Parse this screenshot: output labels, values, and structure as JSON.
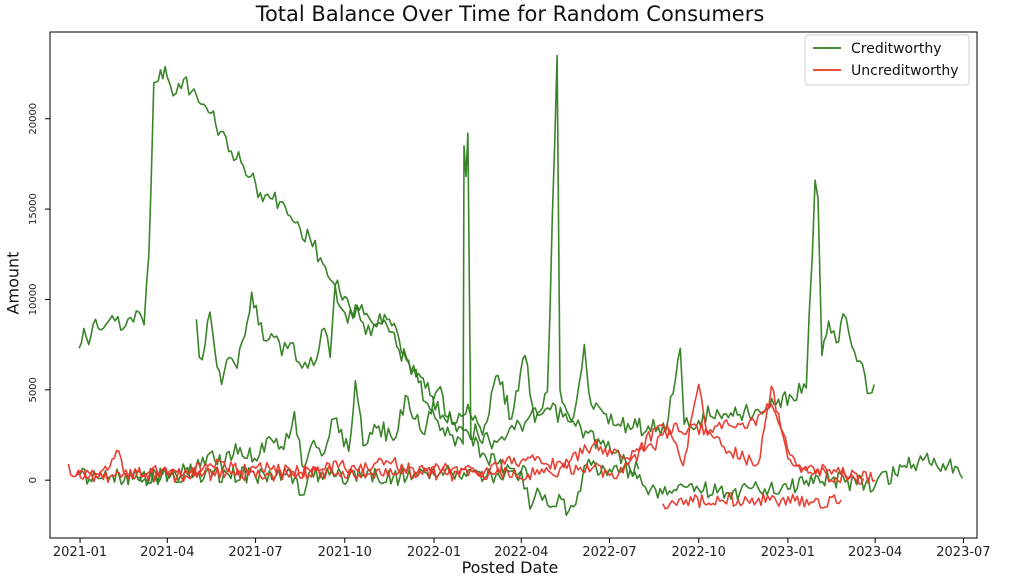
{
  "chart_data": {
    "type": "line",
    "title": "Total Balance Over Time for Random Consumers",
    "xlabel": "Posted Date",
    "ylabel": "Amount",
    "xlim": [
      "2020-12-01",
      "2023-07-15"
    ],
    "ylim": [
      -3200,
      24800
    ],
    "x_ticks": [
      "2021-01",
      "2021-04",
      "2021-07",
      "2021-10",
      "2022-01",
      "2022-04",
      "2022-07",
      "2022-10",
      "2023-01",
      "2023-04",
      "2023-07"
    ],
    "y_ticks": [
      0,
      5000,
      10000,
      15000,
      20000
    ],
    "grid": false,
    "legend": {
      "placement": "top-right",
      "entries": [
        {
          "label": "Creditworthy",
          "color": "#2f7d1f"
        },
        {
          "label": "Uncreditworthy",
          "color": "#e8362a"
        }
      ]
    },
    "series": [
      {
        "class": "Creditworthy",
        "color": "#2f7d1f",
        "points": [
          [
            "2020-12-31",
            7300
          ],
          [
            "2021-01-05",
            8400
          ],
          [
            "2021-01-10",
            7500
          ],
          [
            "2021-01-17",
            8900
          ],
          [
            "2021-01-25",
            8400
          ],
          [
            "2021-02-03",
            9100
          ],
          [
            "2021-02-12",
            8300
          ],
          [
            "2021-02-22",
            9000
          ],
          [
            "2021-03-03",
            9300
          ],
          [
            "2021-03-08",
            8600
          ],
          [
            "2021-03-13",
            12500
          ],
          [
            "2021-03-18",
            22000
          ],
          [
            "2021-03-25",
            22700
          ],
          [
            "2021-04-01",
            22300
          ],
          [
            "2021-04-10",
            21400
          ],
          [
            "2021-04-18",
            22200
          ],
          [
            "2021-04-26",
            21500
          ],
          [
            "2021-05-06",
            20800
          ],
          [
            "2021-05-16",
            20300
          ],
          [
            "2021-05-26",
            19300
          ],
          [
            "2021-06-06",
            18200
          ],
          [
            "2021-06-16",
            17600
          ],
          [
            "2021-06-26",
            16800
          ],
          [
            "2021-07-06",
            15900
          ],
          [
            "2021-07-16",
            15600
          ],
          [
            "2021-07-26",
            15400
          ],
          [
            "2021-08-06",
            14600
          ],
          [
            "2021-08-16",
            13900
          ],
          [
            "2021-08-26",
            13400
          ],
          [
            "2021-09-06",
            12300
          ],
          [
            "2021-09-16",
            11100
          ],
          [
            "2021-09-26",
            10400
          ],
          [
            "2021-10-06",
            9600
          ],
          [
            "2021-10-16",
            9400
          ],
          [
            "2021-10-26",
            9000
          ],
          [
            "2021-11-06",
            8700
          ],
          [
            "2021-11-16",
            8900
          ],
          [
            "2021-11-26",
            7800
          ],
          [
            "2021-12-06",
            6500
          ],
          [
            "2021-12-16",
            5900
          ],
          [
            "2021-12-28",
            4700
          ],
          [
            "2022-01-10",
            3600
          ],
          [
            "2022-01-22",
            3200
          ],
          [
            "2022-02-03",
            2800
          ],
          [
            "2022-02-15",
            2600
          ],
          [
            "2022-02-27",
            2200
          ],
          [
            "2022-03-12",
            2400
          ],
          [
            "2022-03-25",
            2800
          ],
          [
            "2022-04-05",
            3200
          ],
          [
            "2022-04-18",
            3600
          ],
          [
            "2022-05-01",
            3900
          ],
          [
            "2022-05-14",
            3500
          ],
          [
            "2022-05-27",
            3000
          ],
          [
            "2022-06-09",
            2600
          ],
          [
            "2022-06-22",
            2000
          ],
          [
            "2022-07-05",
            1500
          ],
          [
            "2022-07-18",
            1000
          ],
          [
            "2022-07-31",
            600
          ]
        ]
      },
      {
        "class": "Creditworthy",
        "color": "#2f7d1f",
        "points": [
          [
            "2021-05-01",
            8900
          ],
          [
            "2021-05-04",
            6800
          ],
          [
            "2021-05-10",
            7500
          ],
          [
            "2021-05-15",
            9300
          ],
          [
            "2021-05-20",
            7200
          ],
          [
            "2021-05-27",
            5300
          ],
          [
            "2021-06-04",
            6800
          ],
          [
            "2021-06-12",
            6200
          ],
          [
            "2021-06-20",
            8000
          ],
          [
            "2021-06-27",
            10400
          ],
          [
            "2021-07-04",
            8600
          ],
          [
            "2021-07-12",
            7700
          ],
          [
            "2021-07-20",
            7900
          ],
          [
            "2021-07-28",
            6900
          ],
          [
            "2021-08-06",
            7600
          ],
          [
            "2021-08-15",
            6500
          ],
          [
            "2021-08-24",
            6200
          ],
          [
            "2021-09-02",
            6700
          ],
          [
            "2021-09-10",
            8400
          ],
          [
            "2021-09-16",
            6800
          ],
          [
            "2021-09-21",
            10800
          ],
          [
            "2021-09-26",
            9600
          ],
          [
            "2021-10-04",
            8700
          ],
          [
            "2021-10-12",
            9700
          ],
          [
            "2021-10-20",
            8700
          ],
          [
            "2021-10-28",
            8000
          ],
          [
            "2021-11-06",
            9200
          ],
          [
            "2021-11-16",
            8200
          ],
          [
            "2021-11-26",
            7200
          ],
          [
            "2021-12-06",
            6600
          ],
          [
            "2021-12-16",
            5400
          ],
          [
            "2021-12-28",
            3900
          ],
          [
            "2022-01-10",
            2900
          ],
          [
            "2022-01-20",
            2500
          ],
          [
            "2022-01-31",
            2000
          ],
          [
            "2022-02-01",
            18500
          ],
          [
            "2022-02-03",
            16800
          ],
          [
            "2022-02-05",
            19200
          ],
          [
            "2022-02-08",
            2500
          ],
          [
            "2022-02-20",
            1500
          ],
          [
            "2022-03-06",
            900
          ],
          [
            "2022-03-22",
            500
          ],
          [
            "2022-04-10",
            200
          ]
        ]
      },
      {
        "class": "Creditworthy",
        "color": "#2f7d1f",
        "points": [
          [
            "2021-03-01",
            100
          ],
          [
            "2021-03-20",
            200
          ],
          [
            "2021-04-10",
            300
          ],
          [
            "2021-04-30",
            600
          ],
          [
            "2021-05-15",
            1500
          ],
          [
            "2021-05-30",
            900
          ],
          [
            "2021-06-15",
            1800
          ],
          [
            "2021-06-30",
            1200
          ],
          [
            "2021-07-15",
            2400
          ],
          [
            "2021-07-30",
            1700
          ],
          [
            "2021-08-10",
            3800
          ],
          [
            "2021-08-18",
            800
          ],
          [
            "2021-08-30",
            2200
          ],
          [
            "2021-09-10",
            1500
          ],
          [
            "2021-09-20",
            3400
          ],
          [
            "2021-10-05",
            1600
          ],
          [
            "2021-10-12",
            5500
          ],
          [
            "2021-10-20",
            1900
          ],
          [
            "2021-11-05",
            3000
          ],
          [
            "2021-11-20",
            2200
          ],
          [
            "2021-12-05",
            4600
          ],
          [
            "2021-12-20",
            2600
          ],
          [
            "2022-01-05",
            5000
          ],
          [
            "2022-01-20",
            3100
          ],
          [
            "2022-02-05",
            4200
          ],
          [
            "2022-02-20",
            2500
          ],
          [
            "2022-03-08",
            5800
          ],
          [
            "2022-03-22",
            3400
          ],
          [
            "2022-04-05",
            6900
          ],
          [
            "2022-04-15",
            3200
          ],
          [
            "2022-04-28",
            4900
          ],
          [
            "2022-05-08",
            23500
          ],
          [
            "2022-05-11",
            5000
          ],
          [
            "2022-05-25",
            3500
          ],
          [
            "2022-06-05",
            7500
          ],
          [
            "2022-06-12",
            4200
          ],
          [
            "2022-06-25",
            3700
          ],
          [
            "2022-07-10",
            3100
          ],
          [
            "2022-07-25",
            2900
          ],
          [
            "2022-08-10",
            3000
          ],
          [
            "2022-08-28",
            2700
          ],
          [
            "2022-09-12",
            7300
          ],
          [
            "2022-09-16",
            3100
          ],
          [
            "2022-10-01",
            3300
          ],
          [
            "2022-10-20",
            3900
          ],
          [
            "2022-11-10",
            3600
          ],
          [
            "2022-12-01",
            3900
          ],
          [
            "2022-12-20",
            4200
          ],
          [
            "2023-01-05",
            4600
          ],
          [
            "2023-01-20",
            5100
          ],
          [
            "2023-01-29",
            16600
          ],
          [
            "2023-02-01",
            15600
          ],
          [
            "2023-02-05",
            6900
          ],
          [
            "2023-02-12",
            8800
          ],
          [
            "2023-02-20",
            7600
          ],
          [
            "2023-02-27",
            9200
          ],
          [
            "2023-03-08",
            7400
          ],
          [
            "2023-03-16",
            6600
          ],
          [
            "2023-03-24",
            4800
          ],
          [
            "2023-03-31",
            5300
          ]
        ]
      },
      {
        "class": "Creditworthy",
        "color": "#2f7d1f",
        "points": [
          [
            "2021-01-01",
            300
          ],
          [
            "2021-02-01",
            200
          ],
          [
            "2021-03-01",
            150
          ],
          [
            "2021-04-01",
            300
          ],
          [
            "2021-05-01",
            200
          ],
          [
            "2021-06-01",
            400
          ],
          [
            "2021-07-01",
            200
          ],
          [
            "2021-08-01",
            300
          ],
          [
            "2021-08-20",
            -800
          ],
          [
            "2021-08-25",
            400
          ],
          [
            "2021-09-20",
            200
          ],
          [
            "2021-10-20",
            300
          ],
          [
            "2021-11-20",
            200
          ],
          [
            "2022-01-01",
            300
          ],
          [
            "2022-02-01",
            400
          ],
          [
            "2022-03-01",
            300
          ],
          [
            "2022-04-01",
            500
          ],
          [
            "2022-04-10",
            -1600
          ],
          [
            "2022-04-20",
            -700
          ],
          [
            "2022-05-01",
            -1500
          ],
          [
            "2022-05-10",
            -800
          ],
          [
            "2022-05-20",
            -1700
          ],
          [
            "2022-06-01",
            -600
          ],
          [
            "2022-06-05",
            800
          ],
          [
            "2022-07-01",
            600
          ],
          [
            "2022-08-01",
            300
          ],
          [
            "2022-08-10",
            -800
          ],
          [
            "2022-09-01",
            -600
          ],
          [
            "2022-10-01",
            -500
          ],
          [
            "2022-11-01",
            -700
          ],
          [
            "2022-12-01",
            -400
          ],
          [
            "2023-01-01",
            -500
          ],
          [
            "2023-02-01",
            200
          ],
          [
            "2023-03-01",
            -100
          ],
          [
            "2023-04-01",
            -300
          ],
          [
            "2023-05-01",
            800
          ],
          [
            "2023-05-20",
            1100
          ],
          [
            "2023-06-10",
            900
          ],
          [
            "2023-06-25",
            700
          ],
          [
            "2023-06-30",
            100
          ]
        ]
      },
      {
        "class": "Uncreditworthy",
        "color": "#e8362a",
        "points": [
          [
            "2020-12-20",
            900
          ],
          [
            "2020-12-25",
            200
          ],
          [
            "2021-01-20",
            300
          ],
          [
            "2021-02-10",
            1600
          ],
          [
            "2021-02-15",
            400
          ],
          [
            "2021-03-15",
            500
          ],
          [
            "2021-04-15",
            300
          ],
          [
            "2021-05-15",
            900
          ],
          [
            "2021-06-15",
            500
          ],
          [
            "2021-07-15",
            700
          ],
          [
            "2021-08-15",
            400
          ],
          [
            "2021-09-15",
            900
          ],
          [
            "2021-10-15",
            500
          ],
          [
            "2021-11-15",
            1000
          ],
          [
            "2021-12-15",
            400
          ],
          [
            "2022-01-15",
            700
          ],
          [
            "2022-02-15",
            300
          ],
          [
            "2022-03-15",
            900
          ],
          [
            "2022-04-15",
            1100
          ],
          [
            "2022-05-15",
            700
          ],
          [
            "2022-06-15",
            2000
          ],
          [
            "2022-07-15",
            1200
          ],
          [
            "2022-08-15",
            1800
          ],
          [
            "2022-09-01",
            2800
          ],
          [
            "2022-09-15",
            800
          ],
          [
            "2022-10-01",
            5300
          ],
          [
            "2022-10-10",
            2500
          ],
          [
            "2022-11-01",
            1600
          ],
          [
            "2022-12-01",
            900
          ],
          [
            "2022-12-15",
            5200
          ],
          [
            "2023-01-01",
            1200
          ],
          [
            "2023-02-01",
            600
          ],
          [
            "2023-03-01",
            300
          ],
          [
            "2023-03-20",
            100
          ]
        ]
      },
      {
        "class": "Uncreditworthy",
        "color": "#e8362a",
        "points": [
          [
            "2020-12-28",
            300
          ],
          [
            "2021-02-01",
            200
          ],
          [
            "2021-03-10",
            350
          ],
          [
            "2021-04-20",
            250
          ],
          [
            "2021-06-01",
            400
          ],
          [
            "2021-07-15",
            300
          ],
          [
            "2021-09-01",
            500
          ],
          [
            "2021-10-15",
            300
          ],
          [
            "2021-12-01",
            600
          ],
          [
            "2022-01-15",
            300
          ],
          [
            "2022-03-01",
            400
          ],
          [
            "2022-04-15",
            300
          ],
          [
            "2022-06-01",
            700
          ],
          [
            "2022-07-15",
            400
          ],
          [
            "2022-08-20",
            3000
          ],
          [
            "2022-09-20",
            2800
          ],
          [
            "2022-10-20",
            3000
          ],
          [
            "2022-11-20",
            2900
          ],
          [
            "2022-12-15",
            4200
          ],
          [
            "2023-01-10",
            800
          ],
          [
            "2023-02-10",
            300
          ],
          [
            "2023-03-15",
            200
          ],
          [
            "2023-04-01",
            0
          ]
        ]
      },
      {
        "class": "Uncreditworthy",
        "color": "#e8362a",
        "points": [
          [
            "2022-08-25",
            -1300
          ],
          [
            "2022-09-25",
            -1200
          ],
          [
            "2022-10-25",
            -1100
          ],
          [
            "2022-11-25",
            -1000
          ],
          [
            "2022-12-25",
            -1100
          ],
          [
            "2023-01-25",
            -1200
          ],
          [
            "2023-02-25",
            -1100
          ]
        ]
      }
    ]
  }
}
